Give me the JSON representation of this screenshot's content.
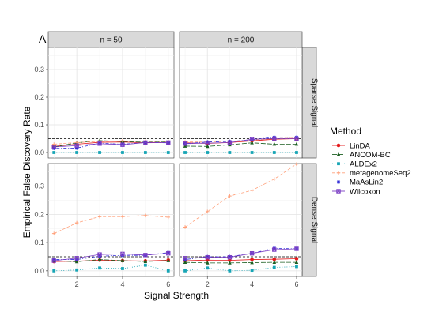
{
  "chart_data": {
    "type": "line",
    "panel_tag": "A",
    "columns": [
      "n = 50",
      "n = 200"
    ],
    "rows": [
      "Sparse Signal",
      "Dense Signal"
    ],
    "xlabel": "Signal Strength",
    "ylabel": "Empirical False Discovery Rate",
    "x": [
      1,
      2,
      3,
      4,
      5,
      6
    ],
    "xticks": [
      2,
      4,
      6
    ],
    "xlim": [
      0.75,
      6.25
    ],
    "yticks": [
      0.0,
      0.1,
      0.2,
      0.3
    ],
    "ylim": [
      -0.02,
      0.38
    ],
    "reference_line": 0.05,
    "legend_title": "Method",
    "grid": true,
    "legend_position": "right",
    "series": [
      {
        "name": "LinDA",
        "color": "#e41a1c",
        "marker": "circle",
        "line": "solid",
        "panels": [
          [
            0.022,
            0.03,
            0.037,
            0.038,
            0.035,
            0.036
          ],
          [
            0.035,
            0.033,
            0.036,
            0.042,
            0.048,
            0.05
          ],
          [
            0.033,
            0.034,
            0.038,
            0.036,
            0.035,
            0.038
          ],
          [
            0.036,
            0.038,
            0.037,
            0.04,
            0.041,
            0.043
          ]
        ]
      },
      {
        "name": "ANCOM-BC",
        "color": "#1b5e20",
        "marker": "triangle",
        "line": "longdash",
        "panels": [
          [
            0.02,
            0.035,
            0.043,
            0.04,
            0.037,
            0.038
          ],
          [
            0.023,
            0.022,
            0.028,
            0.035,
            0.03,
            0.03
          ],
          [
            0.036,
            0.032,
            0.04,
            0.036,
            0.033,
            0.036
          ],
          [
            0.03,
            0.028,
            0.028,
            0.029,
            0.03,
            0.03
          ]
        ]
      },
      {
        "name": "ALDEx2",
        "color": "#17a5b5",
        "marker": "square",
        "line": "dotted",
        "panels": [
          [
            0.0,
            0.0,
            0.0,
            0.0,
            0.0,
            0.0
          ],
          [
            0.0,
            0.0,
            0.0,
            0.0,
            0.0,
            0.0
          ],
          [
            0.0,
            0.003,
            0.01,
            0.008,
            0.02,
            0.0
          ],
          [
            0.0,
            0.01,
            0.0,
            0.002,
            0.012,
            0.015
          ]
        ]
      },
      {
        "name": "metagenomeSeq2",
        "color": "#ffa07a",
        "marker": "plus",
        "line": "dashed",
        "panels": [
          [
            0.03,
            0.036,
            0.04,
            0.042,
            0.04,
            0.04
          ],
          [
            0.038,
            0.038,
            0.04,
            0.045,
            0.05,
            0.052
          ],
          [
            0.132,
            0.17,
            0.192,
            0.192,
            0.196,
            0.19
          ],
          [
            0.155,
            0.21,
            0.265,
            0.285,
            0.325,
            0.378
          ]
        ]
      },
      {
        "name": "MaAsLin2",
        "color": "#2e2ad6",
        "marker": "asterisk",
        "line": "dotdash",
        "panels": [
          [
            0.015,
            0.016,
            0.034,
            0.03,
            0.036,
            0.035
          ],
          [
            0.032,
            0.038,
            0.04,
            0.046,
            0.055,
            0.055
          ],
          [
            0.04,
            0.04,
            0.052,
            0.055,
            0.055,
            0.065
          ],
          [
            0.04,
            0.05,
            0.05,
            0.062,
            0.08,
            0.078
          ]
        ]
      },
      {
        "name": "Wilcoxon",
        "color": "#7b3fc4",
        "marker": "square-cross",
        "line": "solid",
        "panels": [
          [
            0.02,
            0.025,
            0.032,
            0.028,
            0.036,
            0.036
          ],
          [
            0.032,
            0.034,
            0.036,
            0.048,
            0.05,
            0.05
          ],
          [
            0.036,
            0.045,
            0.058,
            0.06,
            0.056,
            0.062
          ],
          [
            0.045,
            0.048,
            0.048,
            0.062,
            0.075,
            0.078
          ]
        ]
      }
    ]
  }
}
